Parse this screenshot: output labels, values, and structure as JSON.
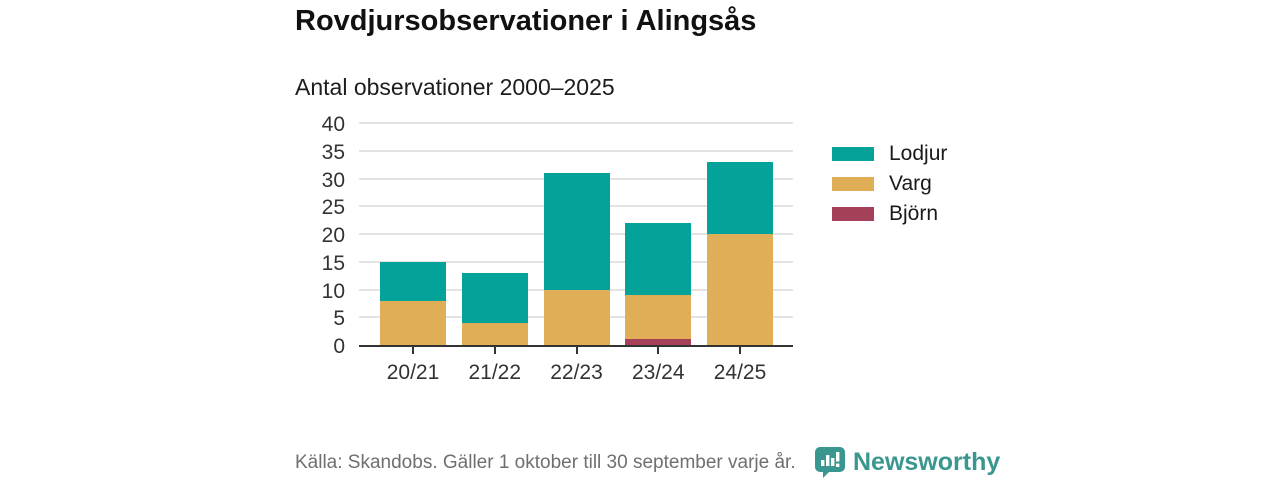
{
  "header": {
    "title": "Rovdjursobservationer i Alingsås",
    "subtitle": "Antal observationer 2000–2025"
  },
  "chart_data": {
    "type": "bar",
    "stacked": true,
    "title": "Rovdjursobservationer i Alingsås",
    "subtitle": "Antal observationer 2000–2025",
    "categories": [
      "20/21",
      "21/22",
      "22/23",
      "23/24",
      "24/25"
    ],
    "series": [
      {
        "name": "Björn",
        "color": "#a54059",
        "values": [
          0,
          0,
          0,
          1,
          0
        ]
      },
      {
        "name": "Varg",
        "color": "#dfae56",
        "values": [
          8,
          4,
          10,
          8,
          20
        ]
      },
      {
        "name": "Lodjur",
        "color": "#04a298",
        "values": [
          7,
          9,
          21,
          13,
          13
        ]
      }
    ],
    "totals": [
      15,
      13,
      31,
      22,
      33
    ],
    "xlabel": "",
    "ylabel": "",
    "ylim": [
      0,
      40
    ],
    "yticks": [
      0,
      5,
      10,
      15,
      20,
      25,
      30,
      35,
      40
    ],
    "legend": [
      "Lodjur",
      "Varg",
      "Björn"
    ],
    "legend_position": "right",
    "grid": "horizontal"
  },
  "footer": {
    "source": "Källa: Skandobs. Gäller 1 oktober till 30 september varje år.",
    "brand": "Newsworthy"
  },
  "colors": {
    "lodjur": "#04a298",
    "varg": "#dfae56",
    "bjorn": "#a54059",
    "brand_teal": "#39978f",
    "axis": "#333333",
    "gridline": "#e4e4e4",
    "title_text": "#111111",
    "source_text": "#6f6f6f"
  }
}
